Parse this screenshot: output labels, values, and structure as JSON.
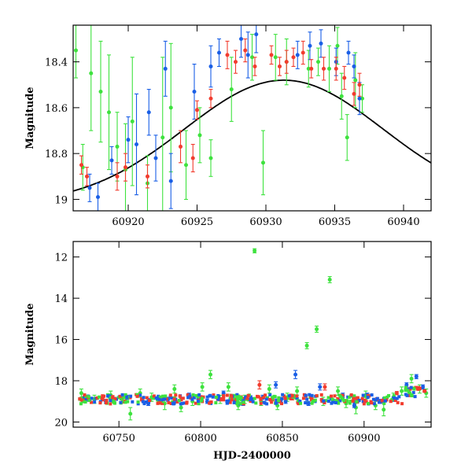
{
  "chart_data": [
    {
      "type": "scatter",
      "panel": "top",
      "xlabel": "",
      "ylabel": "Magnitude",
      "xlim": [
        60916,
        60942
      ],
      "ylim": [
        19.05,
        18.24
      ],
      "y_inverted": true,
      "x_ticks": [
        60920,
        60925,
        60930,
        60935,
        60940
      ],
      "x_tick_labels": [
        "60920",
        "60925",
        "60930",
        "60935",
        "60940"
      ],
      "y_ticks": [
        18.4,
        18.6,
        18.8,
        19.0
      ],
      "y_tick_labels": [
        "18.4",
        "18.6",
        "18.8",
        "19"
      ],
      "grid": false,
      "colors": {
        "green": "#3ee23e",
        "blue": "#1a5fe6",
        "red": "#f23c2e",
        "model": "#000000"
      },
      "model_curve": {
        "peak_x": 60931.3,
        "peak_mag": 18.48,
        "baseline_mag": 19.02,
        "width_days": 7.2
      },
      "series": [
        {
          "color": "green",
          "points": [
            [
              60916.2,
              18.35,
              0.12
            ],
            [
              60916.7,
              18.86,
              0.1
            ],
            [
              60917.3,
              18.45,
              0.25
            ],
            [
              60918.0,
              18.53,
              0.22
            ],
            [
              60918.6,
              18.62,
              0.25
            ],
            [
              60919.2,
              18.77,
              0.15
            ],
            [
              60919.8,
              18.87,
              0.2
            ],
            [
              60920.3,
              18.66,
              0.28
            ],
            [
              60921.4,
              18.93,
              0.12
            ],
            [
              60922.5,
              18.73,
              0.35
            ],
            [
              60923.1,
              18.6,
              0.28
            ],
            [
              60924.2,
              18.85,
              0.15
            ],
            [
              60925.2,
              18.72,
              0.12
            ],
            [
              60926.0,
              18.82,
              0.08
            ],
            [
              60927.5,
              18.52,
              0.14
            ],
            [
              60929.0,
              18.38,
              0.1
            ],
            [
              60929.8,
              18.84,
              0.14
            ],
            [
              60930.7,
              18.38,
              0.1
            ],
            [
              60931.5,
              18.4,
              0.1
            ],
            [
              60933.1,
              18.43,
              0.08
            ],
            [
              60933.8,
              18.4,
              0.06
            ],
            [
              60934.6,
              18.43,
              0.1
            ],
            [
              60935.2,
              18.33,
              0.08
            ],
            [
              60935.5,
              18.55,
              0.1
            ],
            [
              60935.9,
              18.73,
              0.1
            ],
            [
              60936.5,
              18.48,
              0.12
            ],
            [
              60937.0,
              18.56,
              0.06
            ]
          ]
        },
        {
          "color": "blue",
          "points": [
            [
              60917.2,
              18.95,
              0.06
            ],
            [
              60917.8,
              18.99,
              0.06
            ],
            [
              60918.8,
              18.83,
              0.06
            ],
            [
              60920.0,
              18.74,
              0.1
            ],
            [
              60920.6,
              18.76,
              0.22
            ],
            [
              60921.5,
              18.62,
              0.1
            ],
            [
              60922.0,
              18.82,
              0.1
            ],
            [
              60922.7,
              18.43,
              0.12
            ],
            [
              60923.1,
              18.92,
              0.12
            ],
            [
              60924.8,
              18.53,
              0.12
            ],
            [
              60926.0,
              18.42,
              0.09
            ],
            [
              60926.6,
              18.36,
              0.06
            ],
            [
              60928.2,
              18.3,
              0.08
            ],
            [
              60928.7,
              18.37,
              0.1
            ],
            [
              60929.3,
              18.28,
              0.08
            ],
            [
              60932.3,
              18.37,
              0.06
            ],
            [
              60933.2,
              18.33,
              0.06
            ],
            [
              60934.0,
              18.32,
              0.06
            ],
            [
              60935.1,
              18.4,
              0.06
            ],
            [
              60936.0,
              18.36,
              0.05
            ],
            [
              60936.4,
              18.42,
              0.05
            ],
            [
              60936.8,
              18.56,
              0.07
            ]
          ]
        },
        {
          "color": "red",
          "points": [
            [
              60916.6,
              18.85,
              0.04
            ],
            [
              60917.0,
              18.9,
              0.04
            ],
            [
              60919.2,
              18.9,
              0.06
            ],
            [
              60919.8,
              18.86,
              0.06
            ],
            [
              60921.4,
              18.9,
              0.05
            ],
            [
              60923.8,
              18.77,
              0.07
            ],
            [
              60924.7,
              18.82,
              0.06
            ],
            [
              60925.0,
              18.61,
              0.04
            ],
            [
              60926.0,
              18.56,
              0.04
            ],
            [
              60927.2,
              18.37,
              0.06
            ],
            [
              60927.8,
              18.4,
              0.05
            ],
            [
              60928.5,
              18.35,
              0.05
            ],
            [
              60929.2,
              18.42,
              0.04
            ],
            [
              60930.4,
              18.37,
              0.04
            ],
            [
              60931.0,
              18.42,
              0.04
            ],
            [
              60931.5,
              18.4,
              0.05
            ],
            [
              60932.0,
              18.38,
              0.04
            ],
            [
              60932.7,
              18.36,
              0.05
            ],
            [
              60933.3,
              18.43,
              0.04
            ],
            [
              60934.2,
              18.43,
              0.05
            ],
            [
              60935.1,
              18.43,
              0.05
            ],
            [
              60935.7,
              18.47,
              0.05
            ],
            [
              60936.4,
              18.54,
              0.05
            ],
            [
              60936.8,
              18.5,
              0.05
            ]
          ]
        }
      ]
    },
    {
      "type": "scatter",
      "panel": "bottom",
      "xlabel": "HJD-2400000",
      "ylabel": "Magnitude",
      "xlim": [
        60722,
        60941
      ],
      "ylim": [
        20.25,
        11.25
      ],
      "y_inverted": true,
      "x_ticks": [
        60750,
        60800,
        60850,
        60900
      ],
      "x_tick_labels": [
        "60750",
        "60800",
        "60850",
        "60900"
      ],
      "y_ticks": [
        12,
        14,
        16,
        18,
        20
      ],
      "y_tick_labels": [
        "12",
        "14",
        "16",
        "18",
        "20"
      ],
      "grid": false,
      "colors": {
        "green": "#3ee23e",
        "blue": "#1a5fe6",
        "red": "#f23c2e"
      },
      "series": [
        {
          "color": "green",
          "points": [
            [
              60727,
              18.6,
              0.2
            ],
            [
              60735,
              18.9,
              0.2
            ],
            [
              60745,
              18.7,
              0.2
            ],
            [
              60757,
              19.6,
              0.3
            ],
            [
              60763,
              18.6,
              0.2
            ],
            [
              60770,
              18.8,
              0.2
            ],
            [
              60778,
              19.1,
              0.3
            ],
            [
              60784,
              18.4,
              0.2
            ],
            [
              60788,
              19.3,
              0.2
            ],
            [
              60795,
              19.0,
              0.2
            ],
            [
              60801,
              18.3,
              0.2
            ],
            [
              60806,
              17.7,
              0.2
            ],
            [
              60812,
              18.9,
              0.2
            ],
            [
              60817,
              18.3,
              0.2
            ],
            [
              60823,
              19.2,
              0.2
            ],
            [
              60827,
              18.9,
              0.2
            ],
            [
              60833,
              11.7,
              0.1
            ],
            [
              60837,
              19.0,
              0.2
            ],
            [
              60842,
              18.4,
              0.2
            ],
            [
              60847,
              19.2,
              0.2
            ],
            [
              60853,
              18.8,
              0.2
            ],
            [
              60859,
              18.5,
              0.2
            ],
            [
              60865,
              16.3,
              0.15
            ],
            [
              60871,
              15.5,
              0.15
            ],
            [
              60875,
              19.0,
              0.2
            ],
            [
              60879,
              13.1,
              0.15
            ],
            [
              60884,
              18.5,
              0.2
            ],
            [
              60889,
              19.1,
              0.2
            ],
            [
              60895,
              19.3,
              0.3
            ],
            [
              60901,
              18.7,
              0.2
            ],
            [
              60907,
              19.2,
              0.2
            ],
            [
              60912,
              19.4,
              0.3
            ],
            [
              60918,
              18.8,
              0.2
            ],
            [
              60923,
              18.5,
              0.2
            ],
            [
              60929,
              17.9,
              0.2
            ],
            [
              60934,
              18.4,
              0.2
            ],
            [
              60938,
              18.6,
              0.2
            ]
          ]
        },
        {
          "color": "blue",
          "points": [
            [
              60730,
              18.9,
              0.1
            ],
            [
              60742,
              19.0,
              0.1
            ],
            [
              60755,
              18.8,
              0.1
            ],
            [
              60768,
              19.1,
              0.1
            ],
            [
              60780,
              18.9,
              0.1
            ],
            [
              60793,
              18.7,
              0.1
            ],
            [
              60804,
              19.0,
              0.1
            ],
            [
              60814,
              18.6,
              0.1
            ],
            [
              60826,
              19.1,
              0.1
            ],
            [
              60838,
              18.8,
              0.1
            ],
            [
              60846,
              18.2,
              0.15
            ],
            [
              60852,
              19.0,
              0.1
            ],
            [
              60858,
              17.7,
              0.2
            ],
            [
              60866,
              19.1,
              0.1
            ],
            [
              60873,
              18.3,
              0.15
            ],
            [
              60881,
              19.0,
              0.1
            ],
            [
              60887,
              18.7,
              0.1
            ],
            [
              60894,
              19.2,
              0.1
            ],
            [
              60902,
              18.7,
              0.1
            ],
            [
              60910,
              19.0,
              0.1
            ],
            [
              60918,
              18.9,
              0.1
            ],
            [
              60926,
              18.2,
              0.1
            ],
            [
              60932,
              17.8,
              0.1
            ],
            [
              60936,
              18.3,
              0.1
            ]
          ]
        },
        {
          "color": "red",
          "points": [
            [
              60728,
              18.85,
              0.08
            ],
            [
              60740,
              18.9,
              0.08
            ],
            [
              60752,
              18.8,
              0.08
            ],
            [
              60764,
              18.9,
              0.08
            ],
            [
              60776,
              18.85,
              0.08
            ],
            [
              60788,
              18.9,
              0.08
            ],
            [
              60800,
              18.8,
              0.08
            ],
            [
              60812,
              18.9,
              0.08
            ],
            [
              60824,
              18.85,
              0.08
            ],
            [
              60836,
              18.2,
              0.2
            ],
            [
              60844,
              18.9,
              0.08
            ],
            [
              60856,
              18.85,
              0.08
            ],
            [
              60868,
              18.9,
              0.08
            ],
            [
              60876,
              18.3,
              0.15
            ],
            [
              60884,
              18.9,
              0.08
            ],
            [
              60896,
              18.85,
              0.08
            ],
            [
              60908,
              18.9,
              0.08
            ],
            [
              60920,
              18.6,
              0.08
            ],
            [
              60928,
              18.4,
              0.06
            ],
            [
              60933,
              18.4,
              0.06
            ],
            [
              60937,
              18.5,
              0.06
            ]
          ]
        }
      ]
    }
  ]
}
